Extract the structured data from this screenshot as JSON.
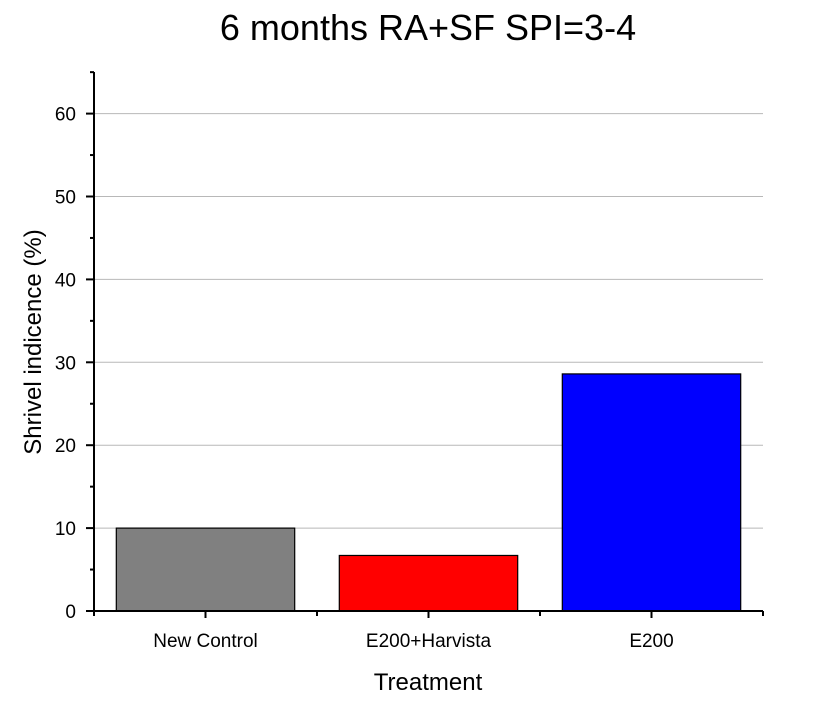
{
  "chart_data": {
    "type": "bar",
    "title": "6 months RA+SF SPI=3-4",
    "xlabel": "Treatment",
    "ylabel": "Shrivel indicence (%)",
    "categories": [
      "New Control",
      "E200+Harvista",
      "E200"
    ],
    "values": [
      10.0,
      6.7,
      28.6
    ],
    "colors": [
      "#808080",
      "#ff0000",
      "#0000ff"
    ],
    "ylim": [
      0,
      65
    ],
    "yticks": [
      0,
      10,
      20,
      30,
      40,
      50,
      60
    ],
    "grid": true
  }
}
